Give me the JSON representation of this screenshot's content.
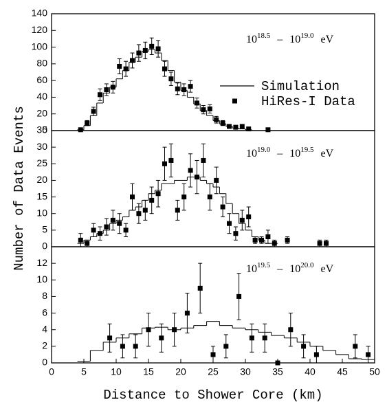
{
  "chart_data": [
    {
      "type": "histogram",
      "xlim": [
        0,
        50
      ],
      "ylim": [
        0,
        140
      ],
      "yticks": [
        0,
        20,
        40,
        60,
        80,
        100,
        120,
        140
      ],
      "legend": "right",
      "annotation": {
        "lo_base": "10",
        "lo_exp": "18.5",
        "sep": "–",
        "hi_base": "10",
        "hi_exp": "19.0",
        "unit": "eV"
      },
      "series": [
        {
          "name": "Simulation",
          "type": "step",
          "color": "#000000",
          "bins": [
            4,
            5,
            6,
            7,
            8,
            9,
            10,
            11,
            12,
            13,
            14,
            15,
            16,
            17,
            18,
            19,
            20,
            21,
            22,
            23,
            24,
            25,
            26,
            27,
            28,
            29,
            30,
            31
          ],
          "values": [
            1,
            6,
            18,
            33,
            45,
            52,
            62,
            72,
            82,
            88,
            95,
            97,
            93,
            84,
            72,
            58,
            48,
            40,
            32,
            24,
            18,
            12,
            8,
            5,
            3,
            2,
            1
          ]
        },
        {
          "name": "HiRes-I Data",
          "type": "scatter",
          "color": "#000000",
          "x": [
            4.5,
            5.5,
            6.5,
            7.5,
            8.5,
            9.5,
            10.5,
            11.5,
            12.5,
            13.5,
            14.5,
            15.5,
            16.5,
            17.5,
            18.5,
            19.5,
            20.5,
            21.5,
            22.5,
            23.5,
            24.5,
            25.5,
            26.5,
            27.5,
            28.5,
            29.5,
            30.5,
            33.5
          ],
          "values": [
            1,
            9,
            23,
            43,
            49,
            52,
            77,
            74,
            84,
            93,
            96,
            101,
            98,
            74,
            62,
            50,
            49,
            53,
            33,
            25,
            26,
            13,
            9,
            5,
            4,
            5,
            2,
            1
          ],
          "errors": [
            1,
            3,
            5,
            7,
            7,
            7,
            9,
            9,
            9,
            10,
            10,
            10,
            10,
            9,
            8,
            7,
            7,
            7,
            6,
            5,
            5,
            4,
            3,
            2,
            2,
            2,
            1,
            1
          ]
        }
      ]
    },
    {
      "type": "histogram",
      "xlim": [
        0,
        50
      ],
      "ylim": [
        0,
        35
      ],
      "yticks": [
        0,
        5,
        10,
        15,
        20,
        25,
        30,
        35
      ],
      "ylabel": "Number of Data Events",
      "annotation": {
        "lo_base": "10",
        "lo_exp": "19.0",
        "sep": "–",
        "hi_base": "10",
        "hi_exp": "19.5",
        "unit": "eV"
      },
      "series": [
        {
          "type": "step",
          "color": "#000000",
          "bins": [
            4,
            5,
            6,
            7,
            8,
            9,
            10,
            11,
            12,
            13,
            14,
            15,
            16,
            17,
            18,
            19,
            20,
            21,
            22,
            23,
            24,
            25,
            26,
            27,
            28,
            29,
            30,
            31,
            32,
            33,
            34,
            35
          ],
          "values": [
            1,
            2,
            3,
            4,
            5,
            7,
            8,
            9,
            11,
            12,
            14,
            16,
            17,
            19,
            19,
            20,
            20,
            21,
            21,
            20,
            19,
            18,
            16,
            13,
            10,
            7,
            5,
            3,
            2,
            1,
            1
          ]
        },
        {
          "type": "scatter",
          "color": "#000000",
          "x": [
            4.5,
            5.5,
            6.5,
            7.5,
            8.5,
            9.5,
            10.5,
            11.5,
            12.5,
            13.5,
            14.5,
            15.5,
            16.5,
            17.5,
            18.5,
            19.5,
            20.5,
            21.5,
            22.5,
            23.5,
            24.5,
            25.5,
            26.5,
            27.5,
            28.5,
            29.5,
            30.5,
            31.5,
            32.5,
            33.5,
            34.5,
            36.5,
            41.5,
            42.5
          ],
          "values": [
            2,
            1,
            5,
            4,
            6,
            8,
            7,
            5,
            15,
            10,
            11,
            14,
            16,
            25,
            26,
            11,
            15,
            23,
            21,
            26,
            15,
            20,
            12,
            7,
            4,
            8,
            9,
            2,
            2,
            3,
            1,
            2,
            1,
            1
          ],
          "errors": [
            2,
            1,
            2,
            2,
            2.5,
            3,
            3,
            2,
            4,
            3,
            3,
            4,
            4,
            5,
            5,
            3,
            4,
            5,
            5,
            5,
            4,
            4,
            3,
            3,
            2,
            3,
            3,
            1,
            1,
            2,
            1,
            1,
            1,
            1
          ]
        }
      ]
    },
    {
      "type": "histogram",
      "xlim": [
        0,
        50
      ],
      "xticks": [
        0,
        5,
        10,
        15,
        20,
        25,
        30,
        35,
        40,
        45,
        50
      ],
      "ylim": [
        0,
        14
      ],
      "yticks": [
        0,
        2,
        4,
        6,
        8,
        10,
        12
      ],
      "xlabel": "Distance to Shower Core (km)",
      "annotation": {
        "lo_base": "10",
        "lo_exp": "19.5",
        "sep": "–",
        "hi_base": "10",
        "hi_exp": "20.0",
        "unit": "eV"
      },
      "series": [
        {
          "type": "step",
          "color": "#000000",
          "bins": [
            4,
            6,
            8,
            10,
            12,
            14,
            16,
            18,
            20,
            22,
            24,
            26,
            28,
            30,
            32,
            34,
            36,
            38,
            40,
            42,
            44,
            46,
            48,
            50
          ],
          "values": [
            0.2,
            1.5,
            2.5,
            3,
            3.5,
            4.2,
            4.3,
            4,
            4.2,
            4.5,
            5,
            4.5,
            4.2,
            4,
            3.7,
            3.3,
            3,
            2.5,
            2,
            1.5,
            1,
            0.5,
            0.4
          ]
        },
        {
          "type": "scatter",
          "color": "#000000",
          "x": [
            9,
            11,
            13,
            15,
            17,
            19,
            21,
            23,
            25,
            27,
            29,
            31,
            33,
            35,
            37,
            39,
            41,
            47,
            49
          ],
          "values": [
            3,
            2,
            2,
            4,
            3,
            4,
            6,
            9,
            1,
            2,
            8,
            3,
            3,
            0,
            4,
            2,
            1,
            2,
            1
          ],
          "errors": [
            1.7,
            1.4,
            1.4,
            2,
            1.7,
            2,
            2.4,
            3,
            1,
            1.4,
            2.8,
            1.7,
            1.7,
            0,
            2,
            1.4,
            1,
            1.4,
            1
          ]
        }
      ]
    }
  ]
}
